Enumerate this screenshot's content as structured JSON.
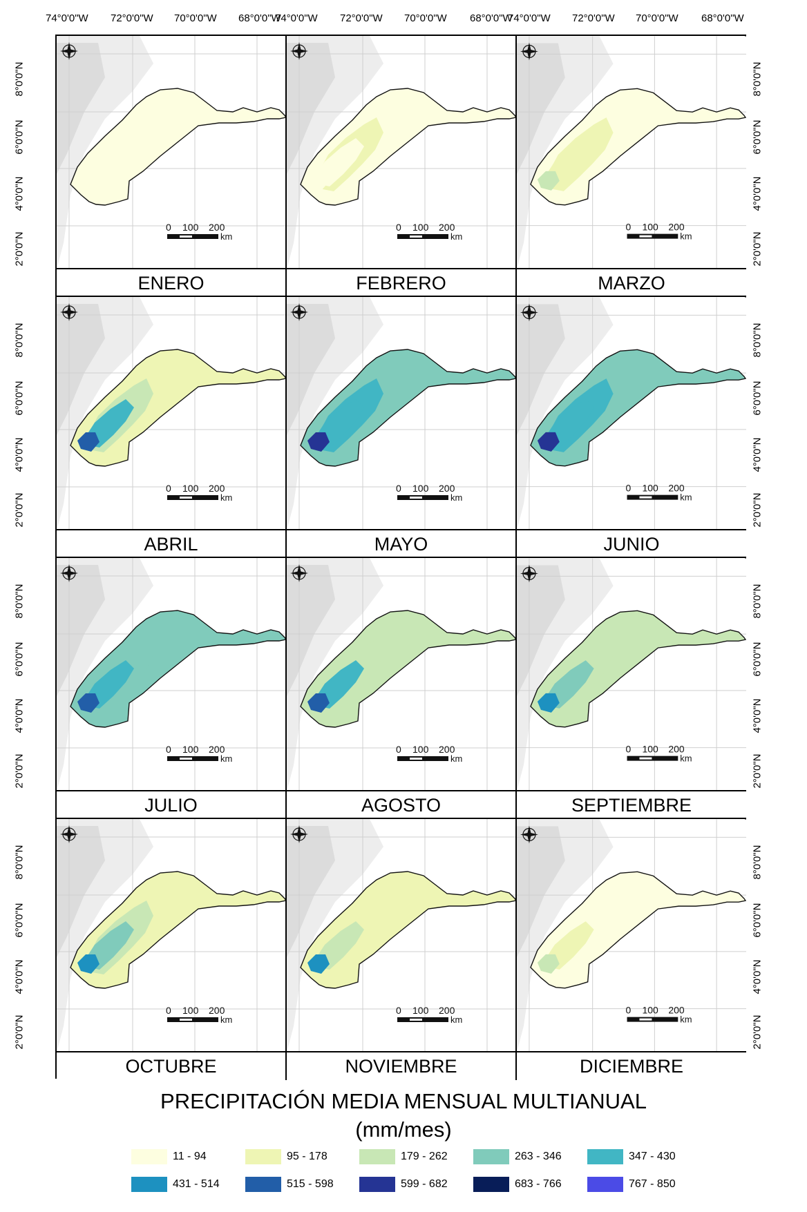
{
  "lon_labels": [
    "74°0'0\"W",
    "72°0'0\"W",
    "70°0'0\"W",
    "68°0'0\"W"
  ],
  "lat_labels": [
    "8°0'0\"N",
    "6°0'0\"N",
    "4°0'0\"N",
    "2°0'0\"N"
  ],
  "scale": {
    "ticks": [
      "0",
      "100",
      "200"
    ],
    "unit": "km"
  },
  "compass_icon": "north-arrow-icon",
  "months": [
    {
      "name": "ENERO",
      "zones": [
        0,
        0,
        0,
        0
      ]
    },
    {
      "name": "FEBRERO",
      "zones": [
        0,
        1,
        0,
        0
      ]
    },
    {
      "name": "MARZO",
      "zones": [
        0,
        1,
        1,
        2
      ]
    },
    {
      "name": "ABRIL",
      "zones": [
        1,
        2,
        4,
        6
      ]
    },
    {
      "name": "MAYO",
      "zones": [
        3,
        4,
        4,
        7
      ]
    },
    {
      "name": "JUNIO",
      "zones": [
        3,
        4,
        4,
        7
      ]
    },
    {
      "name": "JULIO",
      "zones": [
        3,
        3,
        4,
        6
      ]
    },
    {
      "name": "AGOSTO",
      "zones": [
        2,
        2,
        4,
        6
      ]
    },
    {
      "name": "SEPTIEMBRE",
      "zones": [
        2,
        2,
        3,
        5
      ]
    },
    {
      "name": "OCTUBRE",
      "zones": [
        1,
        2,
        3,
        5
      ]
    },
    {
      "name": "NOVIEMBRE",
      "zones": [
        1,
        1,
        2,
        5
      ]
    },
    {
      "name": "DICIEMBRE",
      "zones": [
        0,
        0,
        1,
        2
      ]
    }
  ],
  "title_line1": "PRECIPITACIÓN MEDIA MENSUAL MULTIANUAL",
  "title_line2": "(mm/mes)",
  "legend": [
    {
      "label": "11 - 94",
      "color": "#fdfee0"
    },
    {
      "label": "95 - 178",
      "color": "#eef5b4"
    },
    {
      "label": "179 - 262",
      "color": "#c8e7b5"
    },
    {
      "label": "263 - 346",
      "color": "#80cbbb"
    },
    {
      "label": "347 - 430",
      "color": "#41b6c4"
    },
    {
      "label": "431 - 514",
      "color": "#1d91c0"
    },
    {
      "label": "515 - 598",
      "color": "#225ea8"
    },
    {
      "label": "599 - 682",
      "color": "#253494"
    },
    {
      "label": "683 - 766",
      "color": "#081d58"
    },
    {
      "label": "767 - 850",
      "color": "#4b4be6"
    }
  ]
}
